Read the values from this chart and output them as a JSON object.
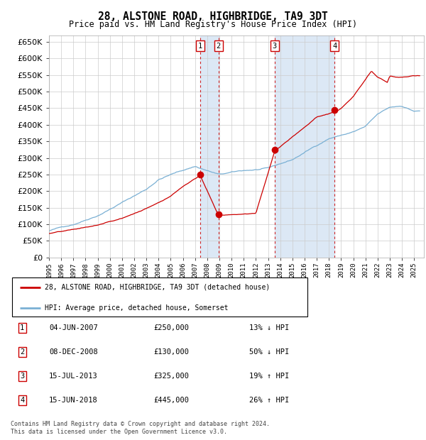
{
  "title": "28, ALSTONE ROAD, HIGHBRIDGE, TA9 3DT",
  "subtitle": "Price paid vs. HM Land Registry's House Price Index (HPI)",
  "ylim": [
    0,
    670000
  ],
  "yticks": [
    0,
    50000,
    100000,
    150000,
    200000,
    250000,
    300000,
    350000,
    400000,
    450000,
    500000,
    550000,
    600000,
    650000
  ],
  "red_color": "#cc0000",
  "blue_color": "#7ab0d4",
  "shade_color": "#dce8f5",
  "grid_color": "#cccccc",
  "background_color": "#ffffff",
  "sale_times": [
    2007.4167,
    2008.9167,
    2013.5417,
    2018.4583
  ],
  "sale_prices": [
    250000,
    130000,
    325000,
    445000
  ],
  "sale_labels": [
    "1",
    "2",
    "3",
    "4"
  ],
  "hpi_knots": [
    1995,
    1997,
    1999,
    2001,
    2003,
    2004,
    2005,
    2007,
    2009,
    2011,
    2013,
    2015,
    2018,
    2020,
    2021,
    2022,
    2023,
    2024,
    2025
  ],
  "hpi_vals": [
    80000,
    100000,
    130000,
    170000,
    210000,
    240000,
    255000,
    280000,
    255000,
    265000,
    270000,
    295000,
    360000,
    380000,
    395000,
    430000,
    450000,
    455000,
    440000
  ],
  "red_knots": [
    1995,
    1997,
    1999,
    2001,
    2003,
    2005,
    2006,
    2007.4167,
    2007.4168,
    2008.9167,
    2008.9168,
    2010,
    2011,
    2012,
    2013.5417,
    2013.5418,
    2015,
    2016,
    2017,
    2018.4583,
    2018.4584,
    2019,
    2020,
    2021,
    2021.5,
    2022,
    2022.3,
    2022.8,
    2023,
    2023.5,
    2024,
    2025
  ],
  "red_vals": [
    72000,
    82000,
    95000,
    115000,
    145000,
    185000,
    215000,
    250000,
    250000,
    130000,
    130000,
    132000,
    134000,
    136000,
    325000,
    325000,
    370000,
    400000,
    430000,
    445000,
    445000,
    455000,
    490000,
    540000,
    565000,
    545000,
    540000,
    530000,
    550000,
    545000,
    545000,
    550000
  ],
  "legend_entries": [
    "28, ALSTONE ROAD, HIGHBRIDGE, TA9 3DT (detached house)",
    "HPI: Average price, detached house, Somerset"
  ],
  "table_entries": [
    {
      "num": "1",
      "date": "04-JUN-2007",
      "price": "£250,000",
      "change": "13% ↓ HPI"
    },
    {
      "num": "2",
      "date": "08-DEC-2008",
      "price": "£130,000",
      "change": "50% ↓ HPI"
    },
    {
      "num": "3",
      "date": "15-JUL-2013",
      "price": "£325,000",
      "change": "19% ↑ HPI"
    },
    {
      "num": "4",
      "date": "15-JUN-2018",
      "price": "£445,000",
      "change": "26% ↑ HPI"
    }
  ],
  "footnote": "Contains HM Land Registry data © Crown copyright and database right 2024.\nThis data is licensed under the Open Government Licence v3.0."
}
